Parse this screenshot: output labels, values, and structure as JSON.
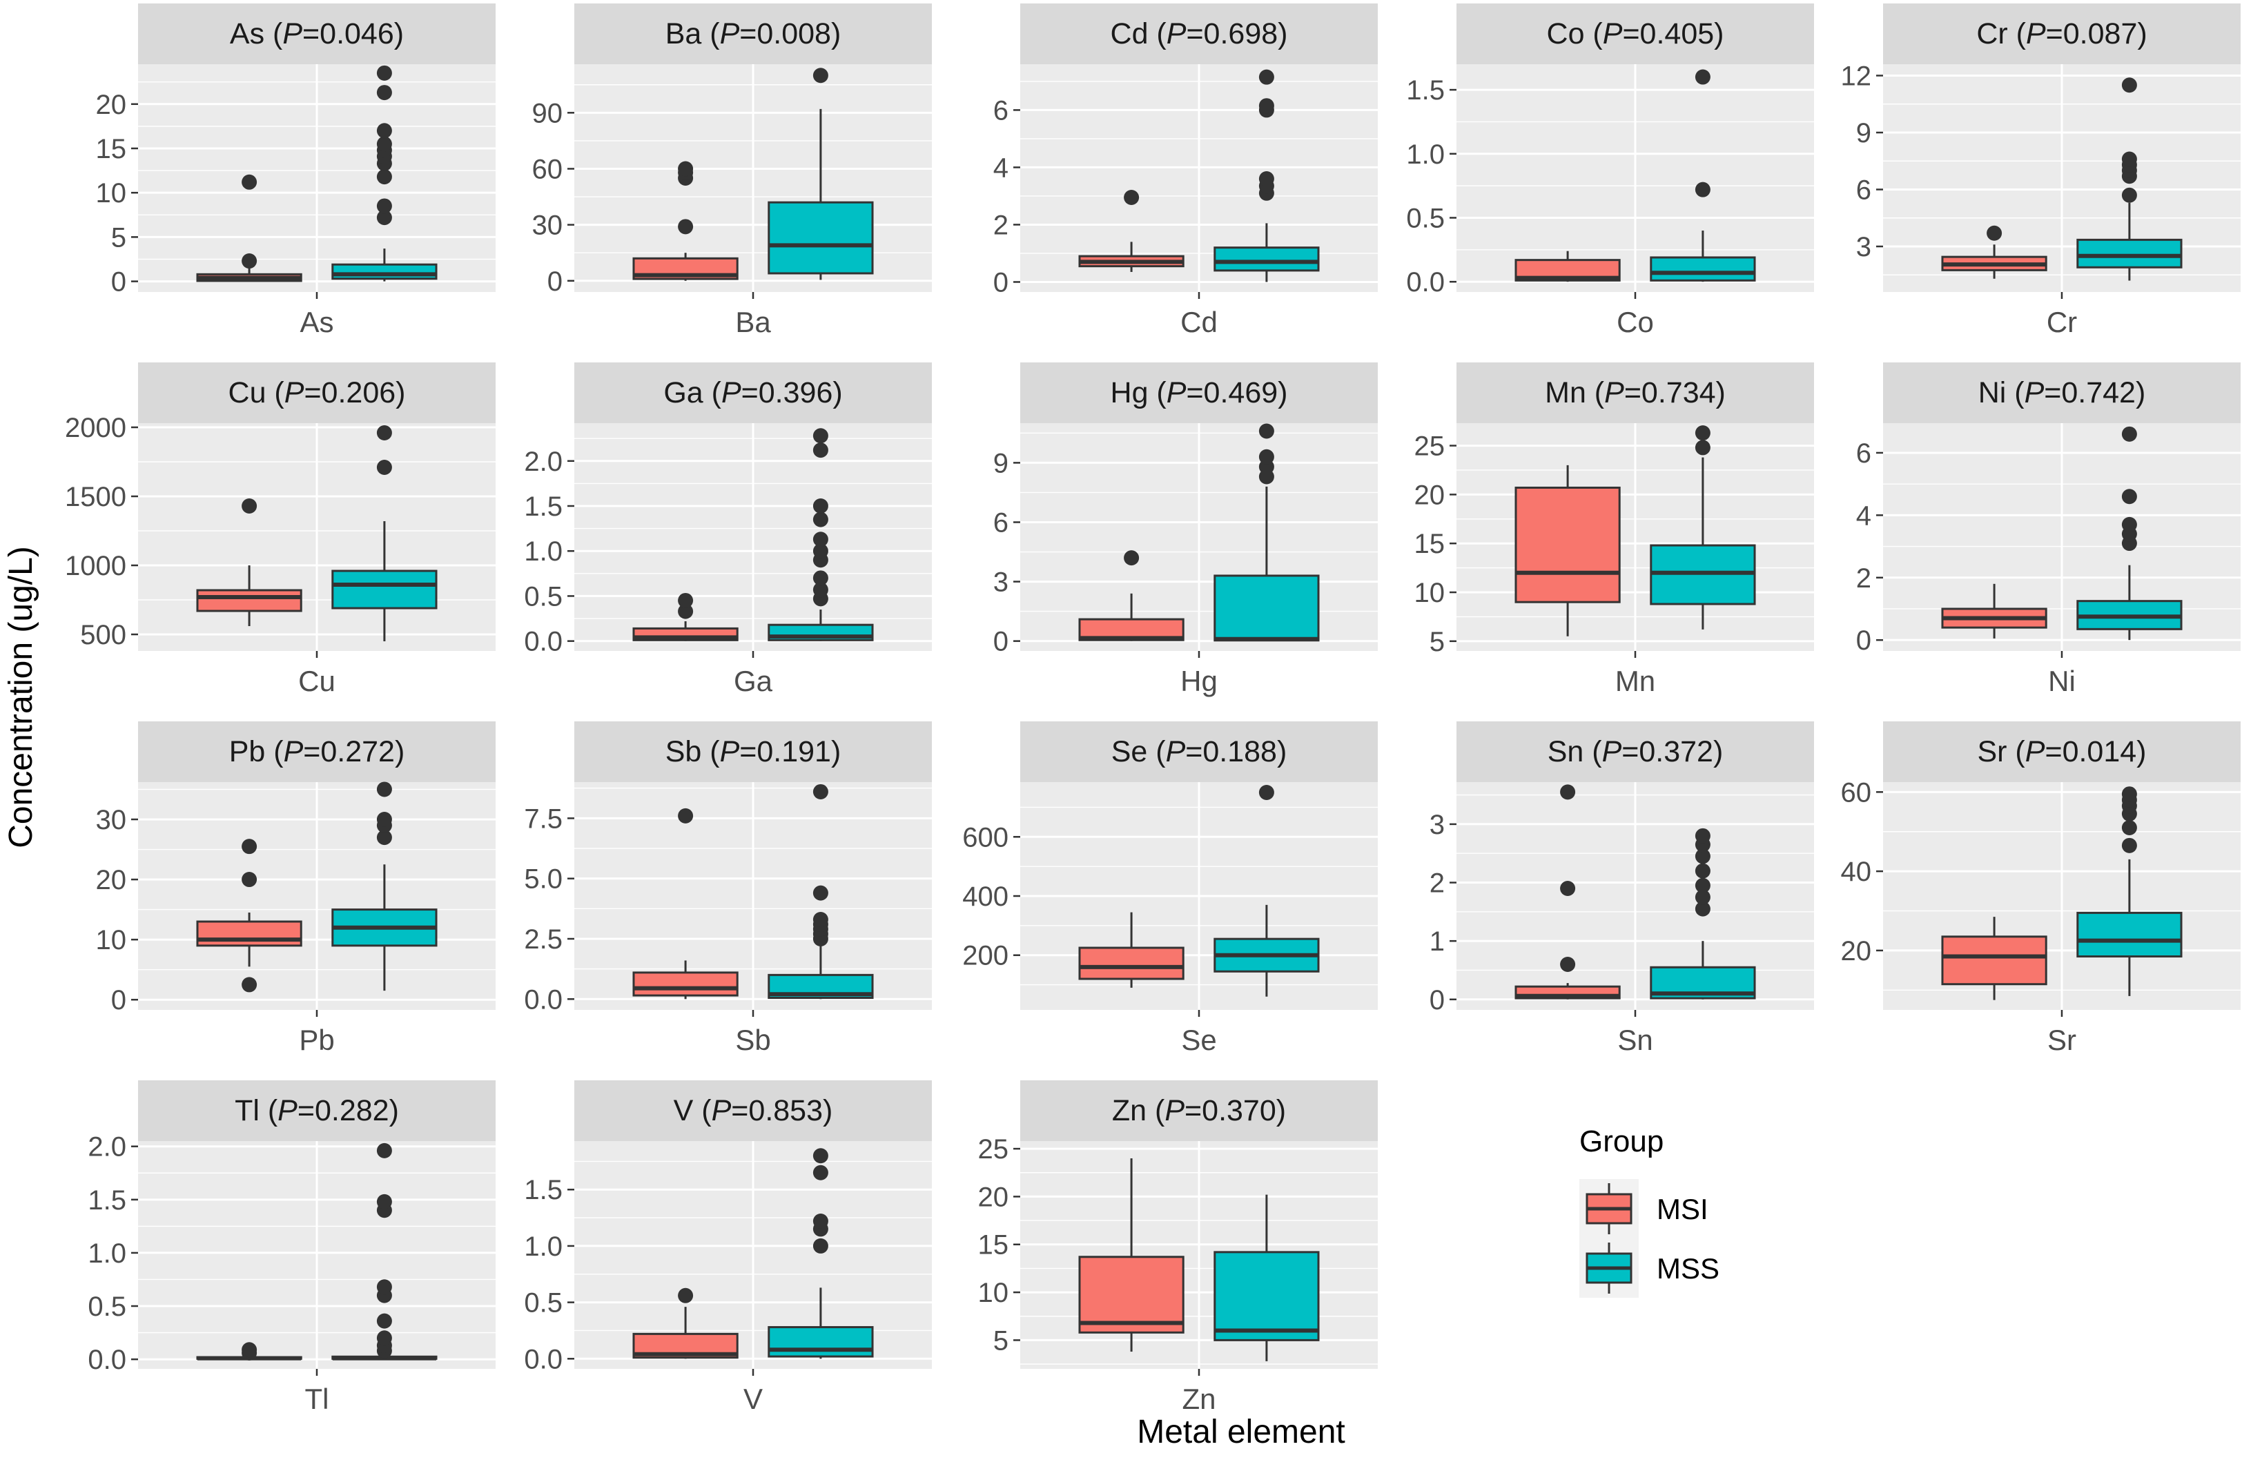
{
  "chart_data": {
    "type": "boxplot",
    "ylabel": "Concentration (ug/L)",
    "xlabel": "Metal element",
    "legend": {
      "title": "Group",
      "placement": "bottom-right",
      "entries": [
        {
          "name": "MSI",
          "color": "#F8766D"
        },
        {
          "name": "MSS",
          "color": "#00BFC4"
        }
      ]
    },
    "colors": {
      "MSI": "#F8766D",
      "MSS": "#00BFC4",
      "panel": "#EBEBEB",
      "strip": "#D9D9D9",
      "grid": "#FFFFFF",
      "line": "#333333"
    },
    "panels": [
      {
        "element": "As",
        "strip_prefix": "As (",
        "p_italic": "P",
        "strip_suffix": "=0.046)",
        "xtick": "As",
        "ylim": [
          -1.2,
          24.5
        ],
        "yticks": [
          0,
          5,
          10,
          15,
          20
        ],
        "ytick_labels": [
          "0",
          "5",
          "10",
          "15",
          "20"
        ],
        "series": [
          {
            "name": "MSI",
            "min": 0.0,
            "q1": 0.05,
            "median": 0.4,
            "q3": 0.8,
            "max": 1.6,
            "outliers": [
              2.3,
              11.2
            ]
          },
          {
            "name": "MSS",
            "min": 0.0,
            "q1": 0.3,
            "median": 0.8,
            "q3": 1.9,
            "max": 3.7,
            "outliers": [
              7.2,
              8.5,
              11.8,
              13.3,
              14.1,
              14.8,
              15.5,
              17.0,
              21.3,
              23.5
            ]
          }
        ]
      },
      {
        "element": "Ba",
        "strip_prefix": "Ba (",
        "p_italic": "P",
        "strip_suffix": "=0.008)",
        "xtick": "Ba",
        "ylim": [
          -6,
          116
        ],
        "yticks": [
          0,
          30,
          60,
          90
        ],
        "ytick_labels": [
          "0",
          "30",
          "60",
          "90"
        ],
        "series": [
          {
            "name": "MSI",
            "min": 0.0,
            "q1": 1.0,
            "median": 3.0,
            "q3": 12.0,
            "max": 15.0,
            "outliers": [
              29,
              55,
              58,
              60
            ]
          },
          {
            "name": "MSS",
            "min": 0.5,
            "q1": 4.0,
            "median": 19.0,
            "q3": 42.0,
            "max": 92.0,
            "outliers": [
              110
            ]
          }
        ]
      },
      {
        "element": "Cd",
        "strip_prefix": "Cd (",
        "p_italic": "P",
        "strip_suffix": "=0.698)",
        "xtick": "Cd",
        "ylim": [
          -0.35,
          7.6
        ],
        "yticks": [
          0,
          2,
          4,
          6
        ],
        "ytick_labels": [
          "0",
          "2",
          "4",
          "6"
        ],
        "series": [
          {
            "name": "MSI",
            "min": 0.35,
            "q1": 0.55,
            "median": 0.7,
            "q3": 0.9,
            "max": 1.4,
            "outliers": [
              2.95
            ]
          },
          {
            "name": "MSS",
            "min": 0.0,
            "q1": 0.4,
            "median": 0.7,
            "q3": 1.2,
            "max": 2.05,
            "outliers": [
              3.1,
              3.35,
              3.6,
              6.0,
              6.15,
              7.15
            ]
          }
        ]
      },
      {
        "element": "Co",
        "strip_prefix": "Co (",
        "p_italic": "P",
        "strip_suffix": "=0.405)",
        "xtick": "Co",
        "ylim": [
          -0.08,
          1.7
        ],
        "yticks": [
          0,
          0.5,
          1.0,
          1.5
        ],
        "ytick_labels": [
          "0.0",
          "0.5",
          "1.0",
          "1.5"
        ],
        "series": [
          {
            "name": "MSI",
            "min": 0.0,
            "q1": 0.01,
            "median": 0.03,
            "q3": 0.17,
            "max": 0.24,
            "outliers": []
          },
          {
            "name": "MSS",
            "min": 0.0,
            "q1": 0.01,
            "median": 0.07,
            "q3": 0.19,
            "max": 0.4,
            "outliers": [
              0.72,
              1.6
            ]
          }
        ]
      },
      {
        "element": "Cr",
        "strip_prefix": "Cr (",
        "p_italic": "P",
        "strip_suffix": "=0.087)",
        "xtick": "Cr",
        "ylim": [
          0.6,
          12.6
        ],
        "yticks": [
          3,
          6,
          9,
          12
        ],
        "ytick_labels": [
          "3",
          "6",
          "9",
          "12"
        ],
        "series": [
          {
            "name": "MSI",
            "min": 1.3,
            "q1": 1.75,
            "median": 2.05,
            "q3": 2.45,
            "max": 3.1,
            "outliers": [
              3.7
            ]
          },
          {
            "name": "MSS",
            "min": 1.2,
            "q1": 1.9,
            "median": 2.5,
            "q3": 3.35,
            "max": 5.3,
            "outliers": [
              5.7,
              6.7,
              7.0,
              7.3,
              7.6,
              11.5
            ]
          }
        ]
      },
      {
        "element": "Cu",
        "strip_prefix": "Cu (",
        "p_italic": "P",
        "strip_suffix": "=0.206)",
        "xtick": "Cu",
        "ylim": [
          380,
          2030
        ],
        "yticks": [
          500,
          1000,
          1500,
          2000
        ],
        "ytick_labels": [
          "500",
          "1000",
          "1500",
          "2000"
        ],
        "series": [
          {
            "name": "MSI",
            "min": 560,
            "q1": 670,
            "median": 770,
            "q3": 820,
            "max": 1000,
            "outliers": [
              1430
            ]
          },
          {
            "name": "MSS",
            "min": 450,
            "q1": 690,
            "median": 860,
            "q3": 960,
            "max": 1320,
            "outliers": [
              1710,
              1960
            ]
          }
        ]
      },
      {
        "element": "Ga",
        "strip_prefix": "Ga (",
        "p_italic": "P",
        "strip_suffix": "=0.396)",
        "xtick": "Ga",
        "ylim": [
          -0.11,
          2.42
        ],
        "yticks": [
          0,
          0.5,
          1.0,
          1.5,
          2.0
        ],
        "ytick_labels": [
          "0.0",
          "0.5",
          "1.0",
          "1.5",
          "2.0"
        ],
        "series": [
          {
            "name": "MSI",
            "min": 0.0,
            "q1": 0.01,
            "median": 0.04,
            "q3": 0.14,
            "max": 0.22,
            "outliers": [
              0.33,
              0.45
            ]
          },
          {
            "name": "MSS",
            "min": 0.0,
            "q1": 0.01,
            "median": 0.05,
            "q3": 0.18,
            "max": 0.35,
            "outliers": [
              0.47,
              0.57,
              0.7,
              0.9,
              1.0,
              1.13,
              1.35,
              1.5,
              2.12,
              2.28
            ]
          }
        ]
      },
      {
        "element": "Hg",
        "strip_prefix": "Hg (",
        "p_italic": "P",
        "strip_suffix": "=0.469)",
        "xtick": "Hg",
        "ylim": [
          -0.5,
          11.0
        ],
        "yticks": [
          0,
          3,
          6,
          9
        ],
        "ytick_labels": [
          "0",
          "3",
          "6",
          "9"
        ],
        "series": [
          {
            "name": "MSI",
            "min": 0.0,
            "q1": 0.05,
            "median": 0.15,
            "q3": 1.1,
            "max": 2.4,
            "outliers": [
              4.2
            ]
          },
          {
            "name": "MSS",
            "min": 0.0,
            "q1": 0.03,
            "median": 0.1,
            "q3": 3.3,
            "max": 7.8,
            "outliers": [
              8.3,
              8.8,
              9.3,
              10.6
            ]
          }
        ]
      },
      {
        "element": "Mn",
        "strip_prefix": "Mn (",
        "p_italic": "P",
        "strip_suffix": "=0.734)",
        "xtick": "Mn",
        "ylim": [
          4.0,
          27.3
        ],
        "yticks": [
          5,
          10,
          15,
          20,
          25
        ],
        "ytick_labels": [
          "5",
          "10",
          "15",
          "20",
          "25"
        ],
        "series": [
          {
            "name": "MSI",
            "min": 5.5,
            "q1": 9.0,
            "median": 12.0,
            "q3": 20.7,
            "max": 23.0,
            "outliers": []
          },
          {
            "name": "MSS",
            "min": 6.2,
            "q1": 8.8,
            "median": 12.0,
            "q3": 14.8,
            "max": 23.8,
            "outliers": [
              24.8,
              26.3
            ]
          }
        ]
      },
      {
        "element": "Ni",
        "strip_prefix": "Ni (",
        "p_italic": "P",
        "strip_suffix": "=0.742)",
        "xtick": "Ni",
        "ylim": [
          -0.35,
          6.95
        ],
        "yticks": [
          0,
          2,
          4,
          6
        ],
        "ytick_labels": [
          "0",
          "2",
          "4",
          "6"
        ],
        "series": [
          {
            "name": "MSI",
            "min": 0.05,
            "q1": 0.4,
            "median": 0.7,
            "q3": 1.0,
            "max": 1.8,
            "outliers": []
          },
          {
            "name": "MSS",
            "min": 0.0,
            "q1": 0.35,
            "median": 0.75,
            "q3": 1.25,
            "max": 2.4,
            "outliers": [
              3.1,
              3.4,
              3.7,
              4.6,
              6.6
            ]
          }
        ]
      },
      {
        "element": "Pb",
        "strip_prefix": "Pb (",
        "p_italic": "P",
        "strip_suffix": "=0.272)",
        "xtick": "Pb",
        "ylim": [
          -1.7,
          36.2
        ],
        "yticks": [
          0,
          10,
          20,
          30
        ],
        "ytick_labels": [
          "0",
          "10",
          "20",
          "30"
        ],
        "series": [
          {
            "name": "MSI",
            "min": 5.5,
            "q1": 9.0,
            "median": 10.0,
            "q3": 13.0,
            "max": 14.5,
            "outliers": [
              2.5,
              20.0,
              25.5
            ]
          },
          {
            "name": "MSS",
            "min": 1.5,
            "q1": 9.0,
            "median": 12.0,
            "q3": 15.0,
            "max": 22.5,
            "outliers": [
              27.0,
              29.0,
              30.0,
              35.0
            ]
          }
        ]
      },
      {
        "element": "Sb",
        "strip_prefix": "Sb (",
        "p_italic": "P",
        "strip_suffix": "=0.191)",
        "xtick": "Sb",
        "ylim": [
          -0.45,
          9.0
        ],
        "yticks": [
          0,
          2.5,
          5.0,
          7.5
        ],
        "ytick_labels": [
          "0.0",
          "2.5",
          "5.0",
          "7.5"
        ],
        "series": [
          {
            "name": "MSI",
            "min": 0.0,
            "q1": 0.15,
            "median": 0.45,
            "q3": 1.1,
            "max": 1.6,
            "outliers": [
              7.6
            ]
          },
          {
            "name": "MSS",
            "min": 0.0,
            "q1": 0.05,
            "median": 0.2,
            "q3": 1.0,
            "max": 2.3,
            "outliers": [
              2.5,
              2.7,
              2.9,
              3.1,
              3.3,
              4.4,
              8.6
            ]
          }
        ]
      },
      {
        "element": "Se",
        "strip_prefix": "Se (",
        "p_italic": "P",
        "strip_suffix": "=0.188)",
        "xtick": "Se",
        "ylim": [
          15,
          785
        ],
        "yticks": [
          200,
          400,
          600
        ],
        "ytick_labels": [
          "200",
          "400",
          "600"
        ],
        "series": [
          {
            "name": "MSI",
            "min": 90,
            "q1": 120,
            "median": 160,
            "q3": 225,
            "max": 345,
            "outliers": []
          },
          {
            "name": "MSS",
            "min": 60,
            "q1": 145,
            "median": 200,
            "q3": 255,
            "max": 370,
            "outliers": [
              750
            ]
          }
        ]
      },
      {
        "element": "Sn",
        "strip_prefix": "Sn (",
        "p_italic": "P",
        "strip_suffix": "=0.372)",
        "xtick": "Sn",
        "ylim": [
          -0.18,
          3.72
        ],
        "yticks": [
          0,
          1,
          2,
          3
        ],
        "ytick_labels": [
          "0",
          "1",
          "2",
          "3"
        ],
        "series": [
          {
            "name": "MSI",
            "min": 0.0,
            "q1": 0.02,
            "median": 0.06,
            "q3": 0.22,
            "max": 0.28,
            "outliers": [
              0.6,
              1.9,
              3.55
            ]
          },
          {
            "name": "MSS",
            "min": 0.0,
            "q1": 0.02,
            "median": 0.1,
            "q3": 0.55,
            "max": 1.0,
            "outliers": [
              1.55,
              1.75,
              1.95,
              2.2,
              2.45,
              2.65,
              2.8
            ]
          }
        ]
      },
      {
        "element": "Sr",
        "strip_prefix": "Sr (",
        "p_italic": "P",
        "strip_suffix": "=0.014)",
        "xtick": "Sr",
        "ylim": [
          5.0,
          62.5
        ],
        "yticks": [
          20,
          40,
          60
        ],
        "ytick_labels": [
          "20",
          "40",
          "60"
        ],
        "series": [
          {
            "name": "MSI",
            "min": 7.5,
            "q1": 11.5,
            "median": 18.5,
            "q3": 23.5,
            "max": 28.5,
            "outliers": []
          },
          {
            "name": "MSS",
            "min": 8.5,
            "q1": 18.5,
            "median": 22.5,
            "q3": 29.5,
            "max": 43.0,
            "outliers": [
              46.5,
              51.0,
              54.5,
              56.5,
              58.0,
              59.5
            ]
          }
        ]
      },
      {
        "element": "Tl",
        "strip_prefix": "Tl (",
        "p_italic": "P",
        "strip_suffix": "=0.282)",
        "xtick": "Tl",
        "ylim": [
          -0.09,
          2.05
        ],
        "yticks": [
          0,
          0.5,
          1.0,
          1.5,
          2.0
        ],
        "ytick_labels": [
          "0.0",
          "0.5",
          "1.0",
          "1.5",
          "2.0"
        ],
        "series": [
          {
            "name": "MSI",
            "min": 0.0,
            "q1": 0.005,
            "median": 0.01,
            "q3": 0.02,
            "max": 0.03,
            "outliers": [
              0.06,
              0.09
            ]
          },
          {
            "name": "MSS",
            "min": 0.0,
            "q1": 0.005,
            "median": 0.01,
            "q3": 0.025,
            "max": 0.04,
            "outliers": [
              0.08,
              0.13,
              0.2,
              0.36,
              0.6,
              0.68,
              1.4,
              1.48,
              1.96
            ]
          }
        ]
      },
      {
        "element": "V",
        "strip_prefix": "V (",
        "p_italic": "P",
        "strip_suffix": "=0.853)",
        "xtick": "V",
        "ylim": [
          -0.09,
          1.93
        ],
        "yticks": [
          0,
          0.5,
          1.0,
          1.5
        ],
        "ytick_labels": [
          "0.0",
          "0.5",
          "1.0",
          "1.5"
        ],
        "series": [
          {
            "name": "MSI",
            "min": 0.0,
            "q1": 0.01,
            "median": 0.04,
            "q3": 0.22,
            "max": 0.46,
            "outliers": [
              0.56
            ]
          },
          {
            "name": "MSS",
            "min": 0.0,
            "q1": 0.02,
            "median": 0.08,
            "q3": 0.28,
            "max": 0.63,
            "outliers": [
              1.0,
              1.15,
              1.22,
              1.65,
              1.8
            ]
          }
        ]
      },
      {
        "element": "Zn",
        "strip_prefix": "Zn (",
        "p_italic": "P",
        "strip_suffix": "=0.370)",
        "xtick": "Zn",
        "ylim": [
          2.0,
          25.8
        ],
        "yticks": [
          5,
          10,
          15,
          20,
          25
        ],
        "ytick_labels": [
          "5",
          "10",
          "15",
          "20",
          "25"
        ],
        "series": [
          {
            "name": "MSI",
            "min": 3.8,
            "q1": 5.8,
            "median": 6.8,
            "q3": 13.7,
            "max": 24.0,
            "outliers": []
          },
          {
            "name": "MSS",
            "min": 2.8,
            "q1": 5.0,
            "median": 6.0,
            "q3": 14.2,
            "max": 20.2,
            "outliers": []
          }
        ]
      }
    ]
  }
}
